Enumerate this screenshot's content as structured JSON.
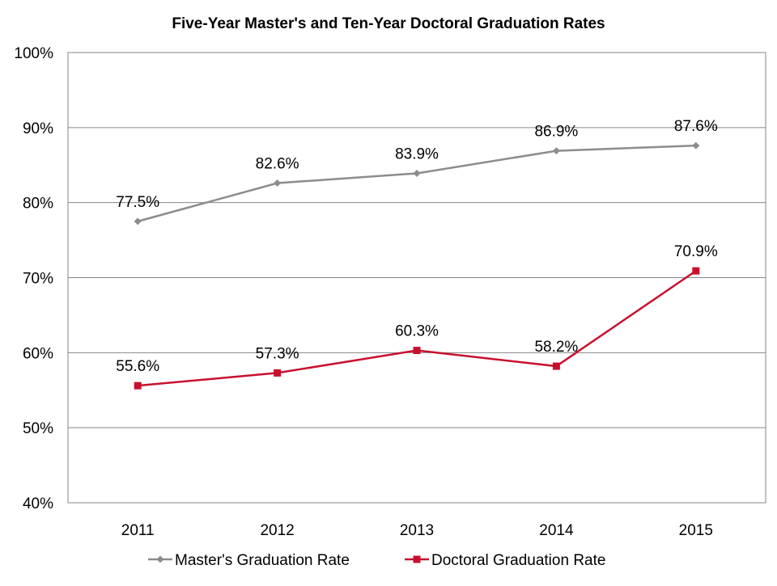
{
  "chart_data": {
    "type": "line",
    "title": "Five-Year Master's and Ten-Year Doctoral Graduation Rates",
    "xlabel": "",
    "ylabel": "",
    "categories": [
      "2011",
      "2012",
      "2013",
      "2014",
      "2015"
    ],
    "ylim": [
      40,
      100
    ],
    "yticks": [
      40,
      50,
      60,
      70,
      80,
      90,
      100
    ],
    "ytick_labels": [
      "40%",
      "50%",
      "60%",
      "70%",
      "80%",
      "90%",
      "100%"
    ],
    "grid": true,
    "legend_position": "bottom",
    "series": [
      {
        "name": "Master's Graduation Rate",
        "values": [
          77.5,
          82.6,
          83.9,
          86.9,
          87.6
        ],
        "labels": [
          "77.5%",
          "82.6%",
          "83.9%",
          "86.9%",
          "87.6%"
        ],
        "color": "#8c8c8c",
        "marker": "diamond"
      },
      {
        "name": "Doctoral Graduation Rate",
        "values": [
          55.6,
          57.3,
          60.3,
          58.2,
          70.9
        ],
        "labels": [
          "55.6%",
          "57.3%",
          "60.3%",
          "58.2%",
          "70.9%"
        ],
        "color": "#c8102e",
        "marker": "square"
      }
    ]
  }
}
